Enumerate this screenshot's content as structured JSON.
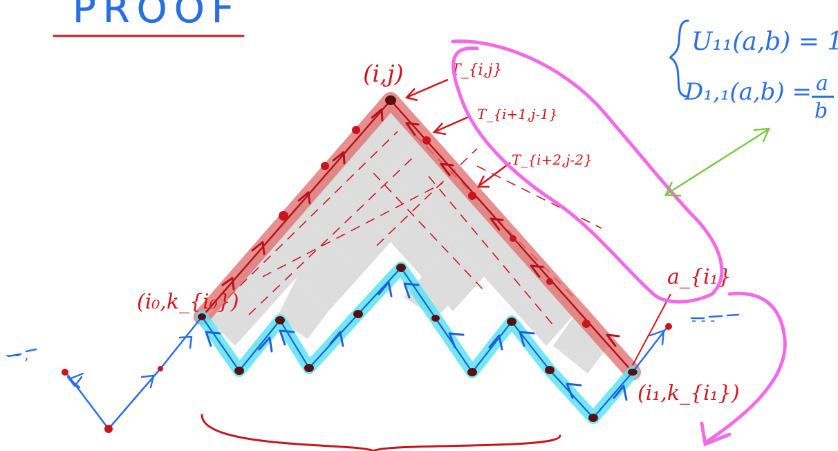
{
  "title": "PROOF",
  "labels": {
    "apex": "(i,j)",
    "t_top": "T_{i,j}",
    "t_second": "T_{i+1,j-1}",
    "t_third": "T_{i+2,j-2}",
    "left_base": "(i₀,k_{i₀})",
    "right_base": "(i₁,k_{i₁})",
    "a_label": "a_{i₁}",
    "dots_left": "- - ,",
    "dots_right": "- - -"
  },
  "equations": {
    "u_line": "U₁₁(a,b) = 1",
    "d_line_prefix": "D₁,₁(a,b) =",
    "d_numerator": "a",
    "d_denominator": "b"
  },
  "colors": {
    "ink_blue": "#2a6fe0",
    "ink_red": "#d0161a",
    "highlight_red": "#e06a6a",
    "highlight_cyan": "#5ce3f2",
    "ink_magenta": "#f26ae6",
    "ink_green": "#7ac943",
    "cell_gray": "#d8d8d8"
  }
}
